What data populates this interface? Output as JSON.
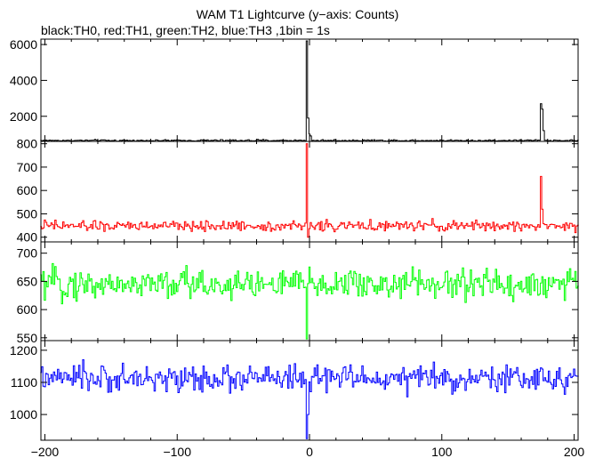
{
  "title": "WAM T1 Lightcurve (y−axis: Counts)",
  "subtitle": "black:TH0, red:TH1, green:TH2, blue:TH3 ,1bin = 1s",
  "chart_data": {
    "type": "line",
    "x_range": [
      -203,
      203
    ],
    "x_ticks": [
      -200,
      -100,
      0,
      100,
      200
    ],
    "x_tick_labels": [
      "−200",
      "−100",
      "0",
      "100",
      "200"
    ],
    "grid": false,
    "panels": [
      {
        "name": "TH0",
        "color": "#000000",
        "ylim": [
          600,
          6300
        ],
        "y_ticks": [
          2000,
          4000,
          6000
        ],
        "y_tick_labels": [
          "2000",
          "4000",
          "6000"
        ],
        "baseline": 650,
        "noise": 50,
        "features": [
          {
            "x": -2,
            "value": 6200
          },
          {
            "x": -1,
            "value": 1900
          },
          {
            "x": 0,
            "value": 1000
          },
          {
            "x": 1,
            "value": 900
          },
          {
            "x": 175,
            "value": 2700
          },
          {
            "x": 176,
            "value": 2400
          },
          {
            "x": 177,
            "value": 1200
          }
        ]
      },
      {
        "name": "TH1",
        "color": "#ff0000",
        "ylim": [
          380,
          810
        ],
        "y_ticks": [
          400,
          500,
          600,
          700,
          800
        ],
        "y_tick_labels": [
          "400",
          "500",
          "600",
          "700",
          "800"
        ],
        "baseline": 448,
        "noise": 22,
        "features": [
          {
            "x": -2,
            "value": 800
          },
          {
            "x": -1,
            "value": 400
          },
          {
            "x": 175,
            "value": 660
          },
          {
            "x": 176,
            "value": 520
          }
        ]
      },
      {
        "name": "TH2",
        "color": "#00ff00",
        "ylim": [
          545,
          720
        ],
        "y_ticks": [
          550,
          600,
          650,
          700
        ],
        "y_tick_labels": [
          "550",
          "600",
          "650",
          "700"
        ],
        "baseline": 645,
        "noise": 28,
        "features": [
          {
            "x": -2,
            "value": 548
          }
        ]
      },
      {
        "name": "TH3",
        "color": "#0000ff",
        "ylim": [
          920,
          1230
        ],
        "y_ticks": [
          1000,
          1100,
          1200
        ],
        "y_tick_labels": [
          "1000",
          "1100",
          "1200"
        ],
        "baseline": 1112,
        "noise": 40,
        "features": [
          {
            "x": -2,
            "value": 925
          },
          {
            "x": -1,
            "value": 1000
          }
        ]
      }
    ]
  }
}
